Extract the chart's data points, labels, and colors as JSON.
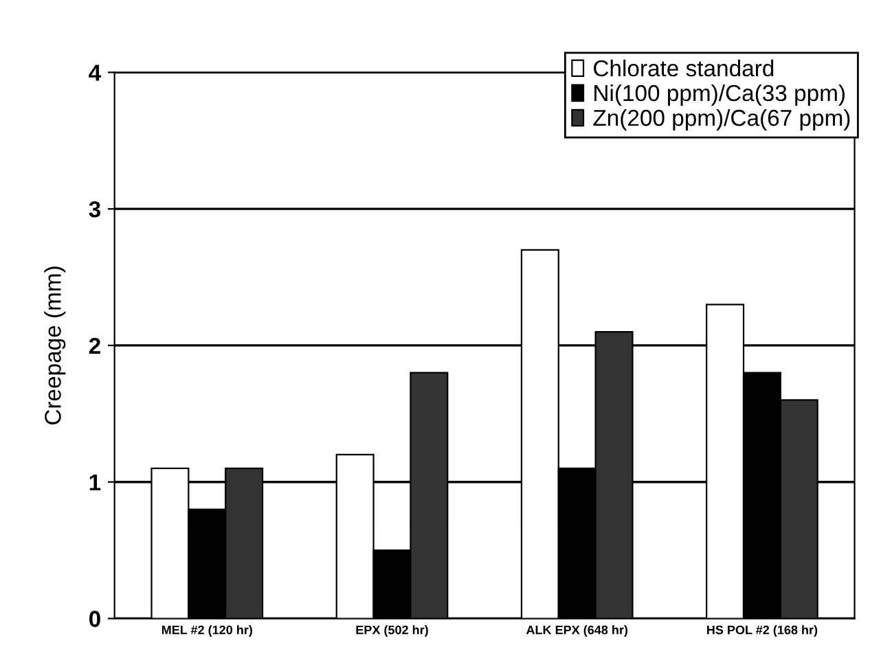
{
  "chart_data": {
    "type": "bar",
    "ylabel": "Creepage (mm)",
    "categories": [
      "MEL #2 (120 hr)",
      "EPX (502 hr)",
      "ALK EPX (648 hr)",
      "HS POL #2 (168 hr)"
    ],
    "series": [
      {
        "name": "Chlorate standard",
        "color": "#ffffff",
        "values": [
          1.1,
          1.2,
          2.7,
          2.3
        ]
      },
      {
        "name": "Ni(100 ppm)/Ca(33 ppm)",
        "color": "#000000",
        "values": [
          0.8,
          0.5,
          1.1,
          1.8
        ]
      },
      {
        "name": "Zn(200 ppm)/Ca(67 ppm)",
        "color": "#333333",
        "values": [
          1.1,
          1.8,
          2.1,
          1.6
        ]
      }
    ],
    "ylim": [
      0,
      4
    ],
    "yticks": [
      0,
      1,
      2,
      3,
      4
    ],
    "grid": "y",
    "legend": "top right"
  }
}
